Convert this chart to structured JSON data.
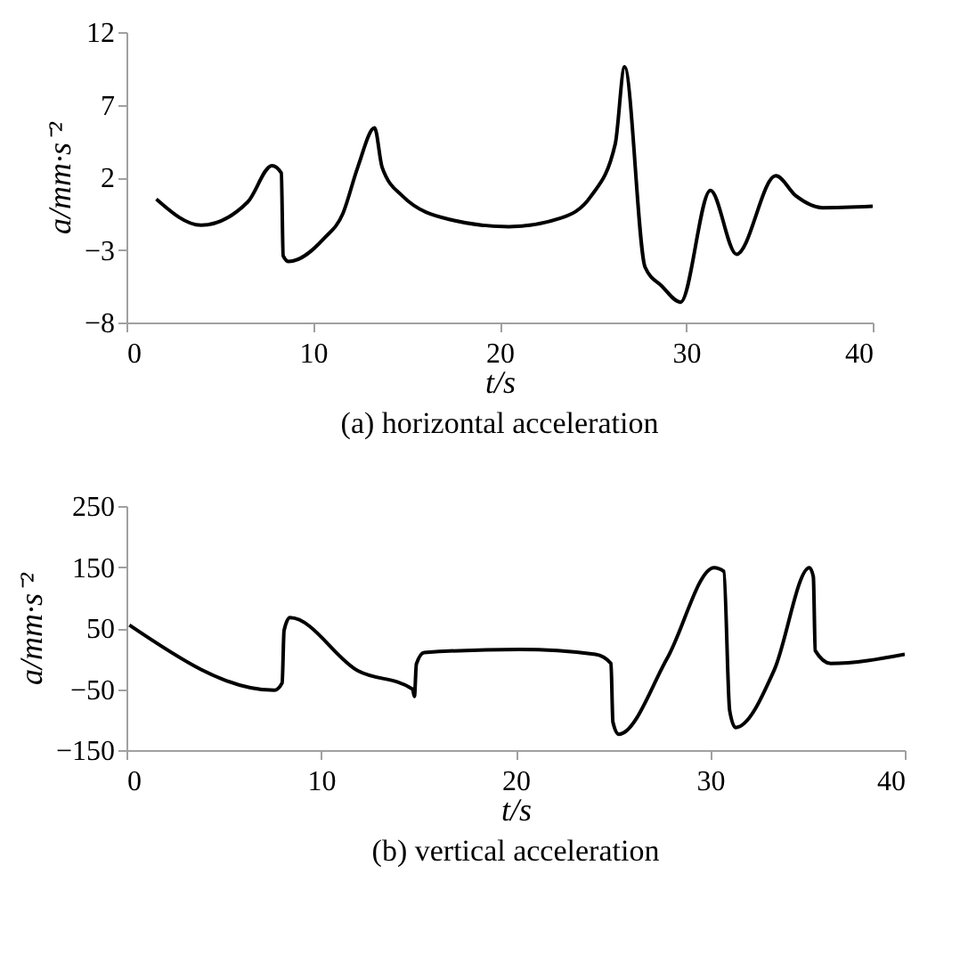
{
  "chart_data": [
    {
      "type": "line",
      "title": "(a) horizontal acceleration",
      "xlabel": "t/s",
      "ylabel": "a/mm·s⁻²",
      "xlim": [
        0,
        40
      ],
      "xticks": [
        0,
        10,
        20,
        30,
        40
      ],
      "ylim": [
        -8,
        12
      ],
      "yticks": [
        -8,
        -3,
        2,
        7,
        12
      ],
      "x": [
        1.6,
        4.0,
        6.5,
        7.8,
        8.3,
        8.4,
        8.7,
        10.6,
        11.6,
        12.4,
        13.3,
        13.7,
        14.8,
        17.3,
        20.5,
        23.3,
        24.9,
        26.2,
        26.7,
        27.8,
        28.7,
        29.7,
        31.3,
        32.7,
        34.8,
        35.9,
        37.3,
        40
      ],
      "series": [
        {
          "color": "#000000",
          "values": [
            0.5,
            -1.3,
            0.3,
            2.8,
            2.3,
            -3.4,
            -3.8,
            -2.2,
            -0.5,
            2.7,
            5.4,
            2.7,
            0.7,
            -0.9,
            -1.4,
            -0.8,
            0.7,
            4.3,
            9.6,
            -4.2,
            -5.5,
            -6.6,
            1.1,
            -3.3,
            2.1,
            0.7,
            -0.1,
            0.0
          ]
        }
      ]
    },
    {
      "type": "line",
      "title": "(b) vertical acceleration",
      "xlabel": "t/s",
      "ylabel": "a/mm·s⁻²",
      "xlim": [
        0,
        40
      ],
      "xticks": [
        0,
        10,
        20,
        30,
        40
      ],
      "ylim": [
        -150,
        250
      ],
      "yticks": [
        -150,
        -50,
        50,
        150,
        250
      ],
      "x": [
        0.15,
        7.6,
        8.0,
        8.1,
        8.4,
        11.9,
        14.7,
        14.8,
        14.9,
        15.3,
        20.2,
        24.1,
        24.9,
        25.0,
        25.3,
        27.8,
        30.2,
        30.7,
        31.0,
        31.3,
        33.3,
        35.1,
        35.3,
        35.4,
        36.2,
        40
      ],
      "series": [
        {
          "color": "#000000",
          "values": [
            55,
            -52,
            -40,
            46,
            67,
            -20,
            -50,
            -62,
            -9,
            10,
            15,
            7,
            -8,
            -104,
            -124,
            1,
            149,
            143,
            -85,
            -113,
            -18,
            149,
            134,
            13,
            -8,
            7
          ]
        }
      ]
    }
  ]
}
